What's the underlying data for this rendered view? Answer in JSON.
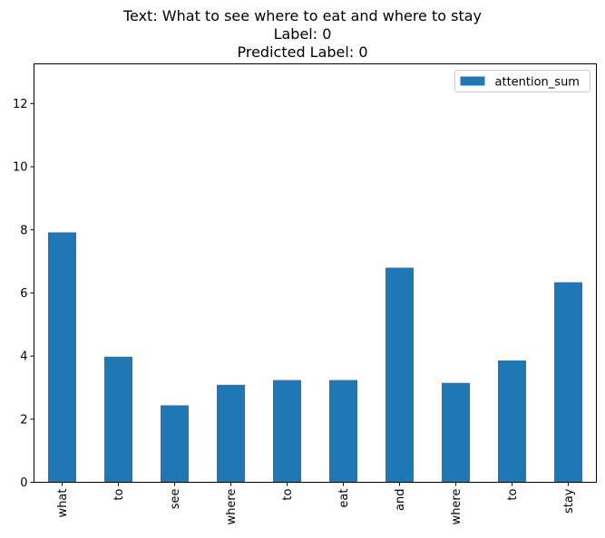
{
  "chart_data": {
    "type": "bar",
    "title_lines": [
      "Text: What to see where to eat and where to stay",
      "Label: 0",
      "Predicted Label: 0"
    ],
    "categories": [
      "what",
      "to",
      "see",
      "where",
      "to",
      "eat",
      "and",
      "where",
      "to",
      "stay"
    ],
    "series": [
      {
        "name": "attention_sum",
        "color": "#1f77b4",
        "values": [
          7.92,
          3.98,
          2.44,
          3.09,
          3.24,
          3.24,
          6.8,
          3.15,
          3.86,
          6.34
        ]
      }
    ],
    "ylim": [
      0,
      13.26
    ],
    "yticks": [
      0,
      2,
      4,
      6,
      8,
      10,
      12
    ],
    "legend_position": "top-right",
    "grid": false
  }
}
